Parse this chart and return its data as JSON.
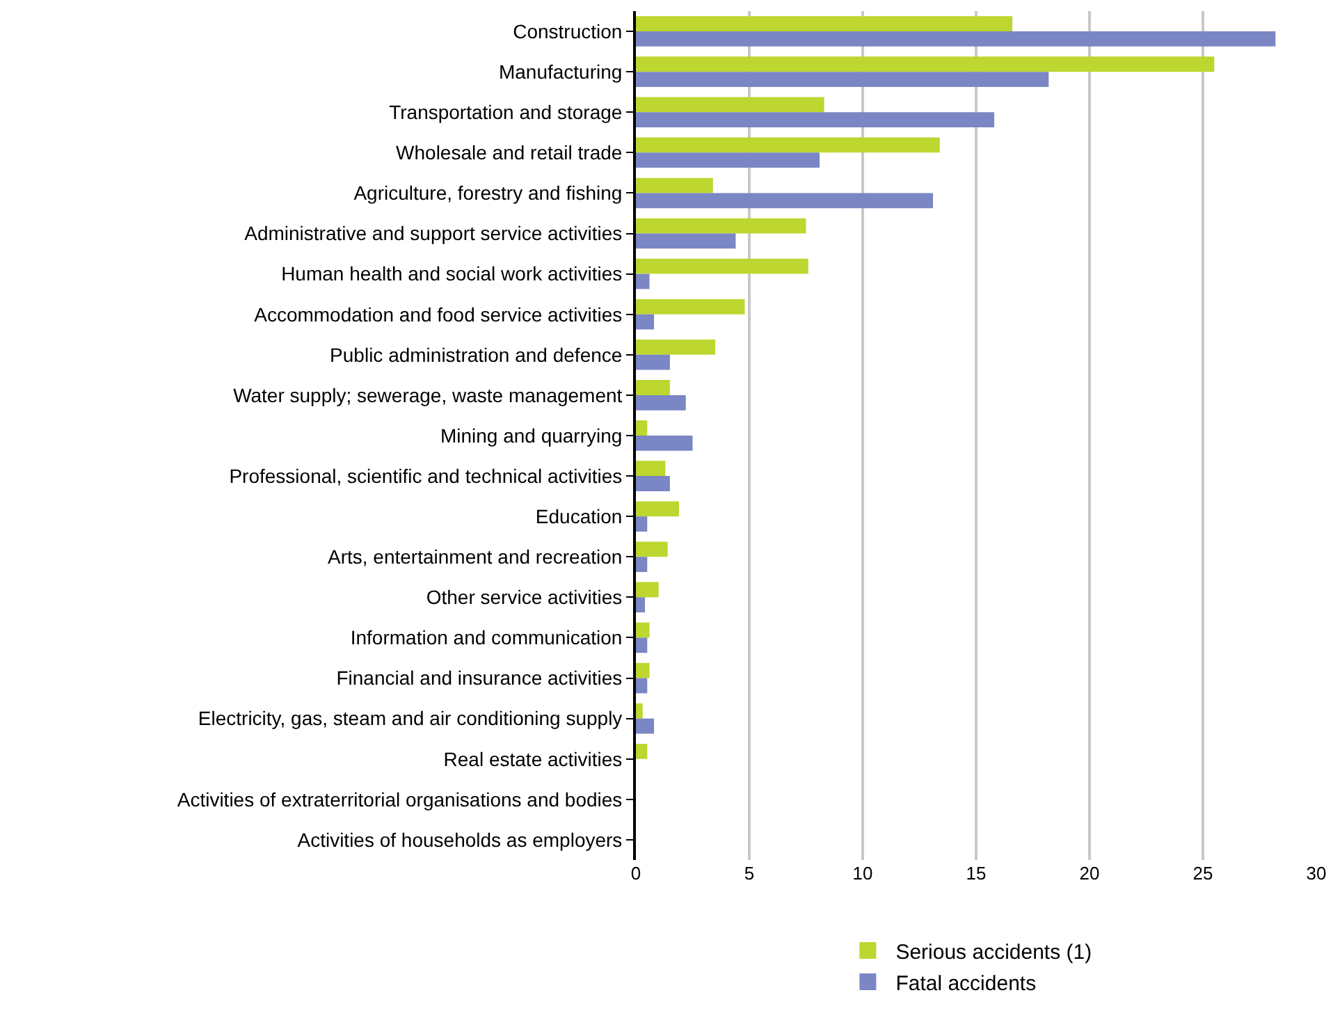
{
  "chart_data": {
    "type": "bar",
    "orientation": "horizontal",
    "categories": [
      "Construction",
      "Manufacturing",
      "Transportation and storage",
      "Wholesale and retail trade",
      "Agriculture, forestry and fishing",
      "Administrative and support service activities",
      "Human health and social work activities",
      "Accommodation and food service activities",
      "Public administration and defence",
      "Water supply; sewerage, waste management",
      "Mining and quarrying",
      "Professional, scientific and technical activities",
      "Education",
      "Arts, entertainment and recreation",
      "Other service activities",
      "Information and communication",
      "Financial and insurance activities",
      "Electricity, gas, steam and air conditioning supply",
      "Real estate activities",
      "Activities of extraterritorial organisations and bodies",
      "Activities of households as employers"
    ],
    "series": [
      {
        "name": "Serious accidents (1)",
        "color": "#bdd630",
        "values": [
          16.6,
          25.5,
          8.3,
          13.4,
          3.4,
          7.5,
          7.6,
          4.8,
          3.5,
          1.5,
          0.5,
          1.3,
          1.9,
          1.4,
          1.0,
          0.6,
          0.6,
          0.3,
          0.5,
          0,
          0
        ]
      },
      {
        "name": "Fatal accidents",
        "color": "#7b86c4",
        "values": [
          28.2,
          18.2,
          15.8,
          8.1,
          13.1,
          4.4,
          0.6,
          0.8,
          1.5,
          2.2,
          2.5,
          1.5,
          0.5,
          0.5,
          0.4,
          0.5,
          0.5,
          0.8,
          0,
          0,
          0
        ]
      }
    ],
    "xlim": [
      0,
      30
    ],
    "xticks": [
      0,
      5,
      10,
      15,
      20,
      25,
      30
    ],
    "grid": "x",
    "legend": "bottom"
  }
}
